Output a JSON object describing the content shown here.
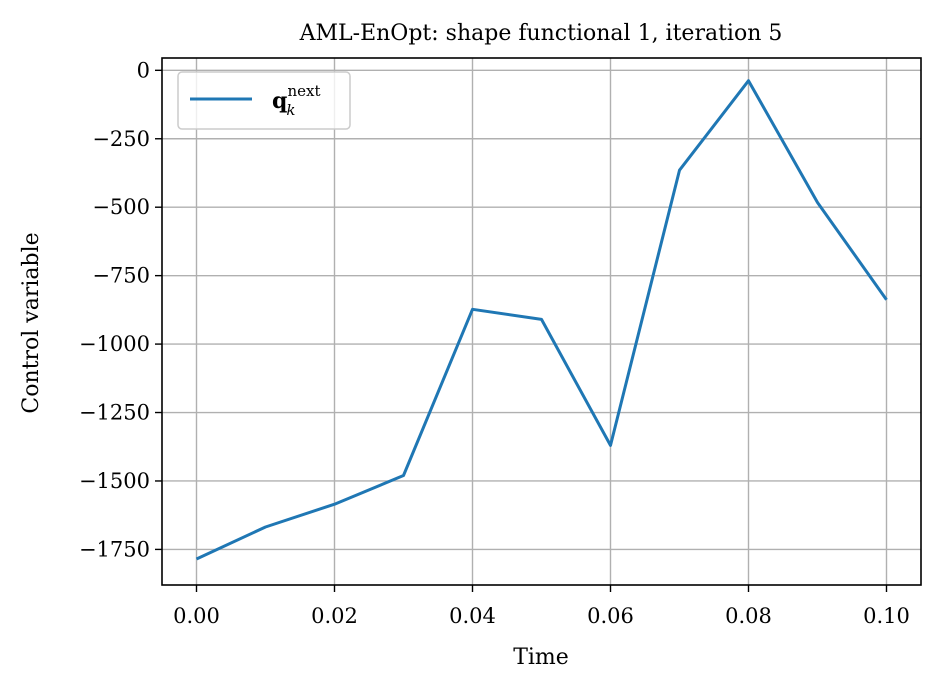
{
  "chart_data": {
    "type": "line",
    "title": "AML-EnOpt: shape functional 1, iteration 5",
    "xlabel": "Time",
    "ylabel": "Control variable",
    "xlim": [
      -0.005,
      0.105
    ],
    "ylim": [
      -1880,
      45
    ],
    "xticks": [
      0.0,
      0.02,
      0.04,
      0.06,
      0.08,
      0.1
    ],
    "xtick_labels": [
      "0.00",
      "0.02",
      "0.04",
      "0.06",
      "0.08",
      "0.10"
    ],
    "yticks": [
      0,
      -250,
      -500,
      -750,
      -1000,
      -1250,
      -1500,
      -1750
    ],
    "ytick_labels": [
      "0",
      "−250",
      "−500",
      "−750",
      "−1000",
      "−1250",
      "−1500",
      "−1750"
    ],
    "grid": true,
    "legend_position": "top-left",
    "series": [
      {
        "name": "q",
        "name_sub": "k",
        "name_sup": "next",
        "color": "#1f77b4",
        "x": [
          0.0,
          0.01,
          0.02,
          0.03,
          0.04,
          0.05,
          0.06,
          0.07,
          0.08,
          0.09,
          0.1
        ],
        "y": [
          -1785,
          -1668,
          -1585,
          -1480,
          -873,
          -910,
          -1370,
          -365,
          -38,
          -483,
          -838
        ]
      }
    ]
  }
}
